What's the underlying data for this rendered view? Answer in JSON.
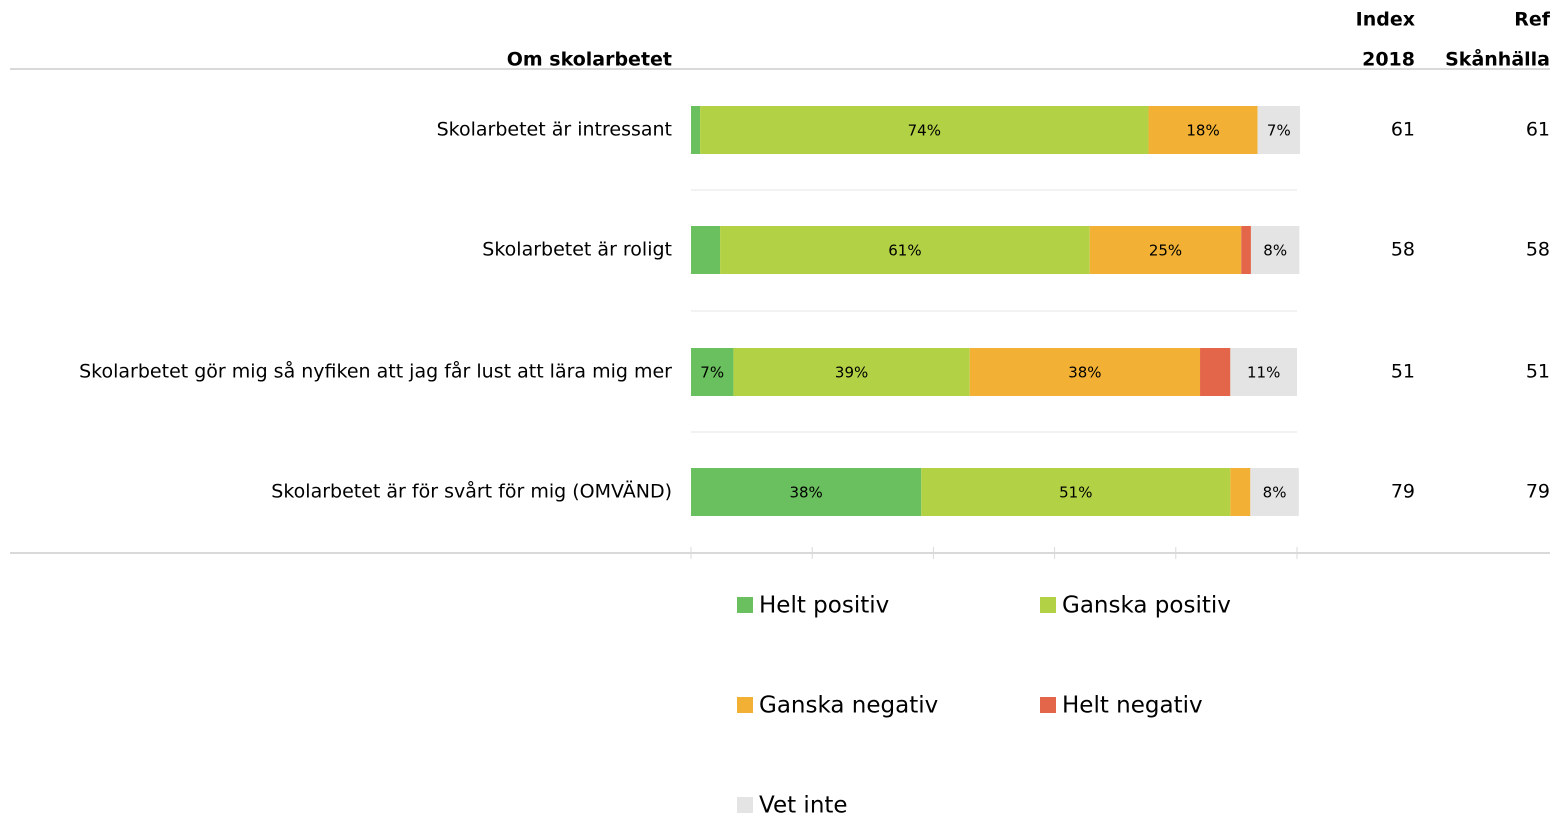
{
  "chart_data": {
    "type": "stacked-barh",
    "title": "Om skolarbetet",
    "categories": [
      "Skolarbetet är intressant",
      "Skolarbetet är roligt",
      "Skolarbetet gör mig så nyfiken att jag får lust att lära mig mer",
      "Skolarbetet är för svårt för mig (OMVÄND)"
    ],
    "series": [
      {
        "name": "Helt positiv",
        "color": "#6abf5e",
        "values": [
          1.5,
          4.8,
          7,
          38
        ],
        "value_labels": [
          null,
          null,
          "7%",
          "38%"
        ]
      },
      {
        "name": "Ganska positiv",
        "color": "#b2d145",
        "values": [
          74,
          61,
          39,
          51
        ],
        "value_labels": [
          "74%",
          "61%",
          "39%",
          "51%"
        ]
      },
      {
        "name": "Ganska negativ",
        "color": "#f2b134",
        "values": [
          18,
          25,
          38,
          3.3
        ],
        "value_labels": [
          "18%",
          "25%",
          "38%",
          null
        ]
      },
      {
        "name": "Helt negativ",
        "color": "#e4664a",
        "values": [
          0,
          1.6,
          5,
          0
        ],
        "value_labels": [
          null,
          null,
          null,
          null
        ]
      },
      {
        "name": "Vet inte",
        "color": "#e4e4e4",
        "values": [
          7,
          8,
          11,
          8
        ],
        "value_labels": [
          "7%",
          "8%",
          "11%",
          "8%"
        ]
      }
    ],
    "xlim": [
      0,
      100
    ],
    "xticks": [
      0,
      20,
      40,
      60,
      80,
      100
    ],
    "columns": [
      {
        "header": [
          "Index",
          "2018"
        ],
        "values": [
          61,
          58,
          51,
          79
        ]
      },
      {
        "header": [
          "Ref",
          "Skånhälla"
        ],
        "values": [
          61,
          58,
          51,
          79
        ]
      }
    ]
  }
}
